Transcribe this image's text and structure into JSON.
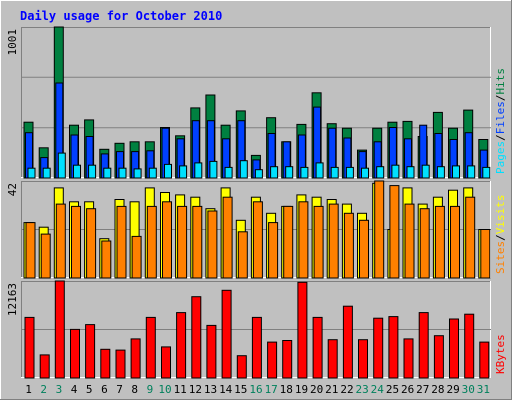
{
  "chart_data": {
    "title": "Daily usage for October 2010",
    "categories": [
      "1",
      "2",
      "3",
      "4",
      "5",
      "6",
      "7",
      "8",
      "9",
      "10",
      "11",
      "12",
      "13",
      "14",
      "15",
      "16",
      "17",
      "18",
      "19",
      "20",
      "21",
      "22",
      "23",
      "24",
      "25",
      "26",
      "27",
      "28",
      "29",
      "30",
      "31"
    ],
    "weekend_days": [
      "2",
      "3",
      "9",
      "10",
      "16",
      "17",
      "23",
      "24",
      "30",
      "31"
    ],
    "colors": {
      "hits": "#008040",
      "files": "#0040ff",
      "pages": "#00e0ff",
      "visits": "#ffff00",
      "sites": "#ff8000",
      "kbytes": "#ff0000",
      "weekday_label": "#000000",
      "weekend_label": "#00805c",
      "title": "#0000ff"
    },
    "panels": [
      {
        "type": "bar",
        "max_label": "1001",
        "ylim": [
          0,
          1001
        ],
        "legend": [
          {
            "label": "Pages",
            "color": "#00e0ff"
          },
          {
            "label": "Files",
            "color": "#0040ff"
          },
          {
            "label": "Hits",
            "color": "#008040"
          }
        ],
        "series": [
          {
            "name": "Hits",
            "values": [
              370,
              200,
              1001,
              350,
              385,
              190,
              230,
              240,
              240,
              335,
              280,
              465,
              550,
              350,
              445,
              150,
              400,
              240,
              355,
              565,
              360,
              330,
              185,
              330,
              370,
              375,
              275,
              435,
              330,
              450,
              255
            ]
          },
          {
            "name": "Files",
            "values": [
              300,
              135,
              630,
              285,
              275,
              160,
              175,
              175,
              180,
              330,
              260,
              380,
              380,
              260,
              380,
              120,
              295,
              240,
              285,
              470,
              330,
              265,
              175,
              240,
              335,
              260,
              350,
              295,
              255,
              300,
              185
            ]
          },
          {
            "name": "Pages",
            "values": [
              65,
              65,
              165,
              85,
              85,
              65,
              65,
              60,
              65,
              90,
              80,
              100,
              110,
              70,
              115,
              55,
              75,
              75,
              70,
              100,
              70,
              70,
              65,
              75,
              85,
              75,
              85,
              75,
              80,
              80,
              70
            ]
          }
        ]
      },
      {
        "type": "bar",
        "max_label": "42",
        "ylim": [
          0,
          42
        ],
        "legend": [
          {
            "label": "Sites",
            "color": "#ff8000"
          },
          {
            "label": "Visits",
            "color": "#ffff00"
          }
        ],
        "series": [
          {
            "name": "Visits",
            "values": [
              24,
              22,
              39,
              33,
              33,
              17,
              34,
              33,
              39,
              37,
              36,
              35,
              30,
              39,
              25,
              35,
              28,
              31,
              36,
              35,
              34,
              32,
              28,
              41,
              21,
              39,
              32,
              35,
              38,
              39,
              21
            ]
          },
          {
            "name": "Sites",
            "values": [
              24,
              19,
              32,
              31,
              30,
              16,
              31,
              18,
              31,
              33,
              31,
              31,
              29,
              35,
              20,
              33,
              24,
              31,
              33,
              31,
              32,
              28,
              25,
              42,
              40,
              32,
              30,
              31,
              31,
              35,
              21
            ]
          }
        ]
      },
      {
        "type": "bar",
        "max_label": "12163",
        "ylim": [
          0,
          12163
        ],
        "legend": [
          {
            "label": "KBytes",
            "color": "#ff0000"
          }
        ],
        "series": [
          {
            "name": "KBytes",
            "values": [
              7600,
              2900,
              12163,
              6100,
              6700,
              3600,
              3500,
              4900,
              7600,
              3900,
              8200,
              10200,
              6600,
              11000,
              2800,
              7600,
              4500,
              4700,
              12000,
              7600,
              4800,
              9000,
              4800,
              7500,
              7700,
              4900,
              8200,
              5300,
              7400,
              8000,
              4500
            ]
          }
        ]
      }
    ]
  }
}
